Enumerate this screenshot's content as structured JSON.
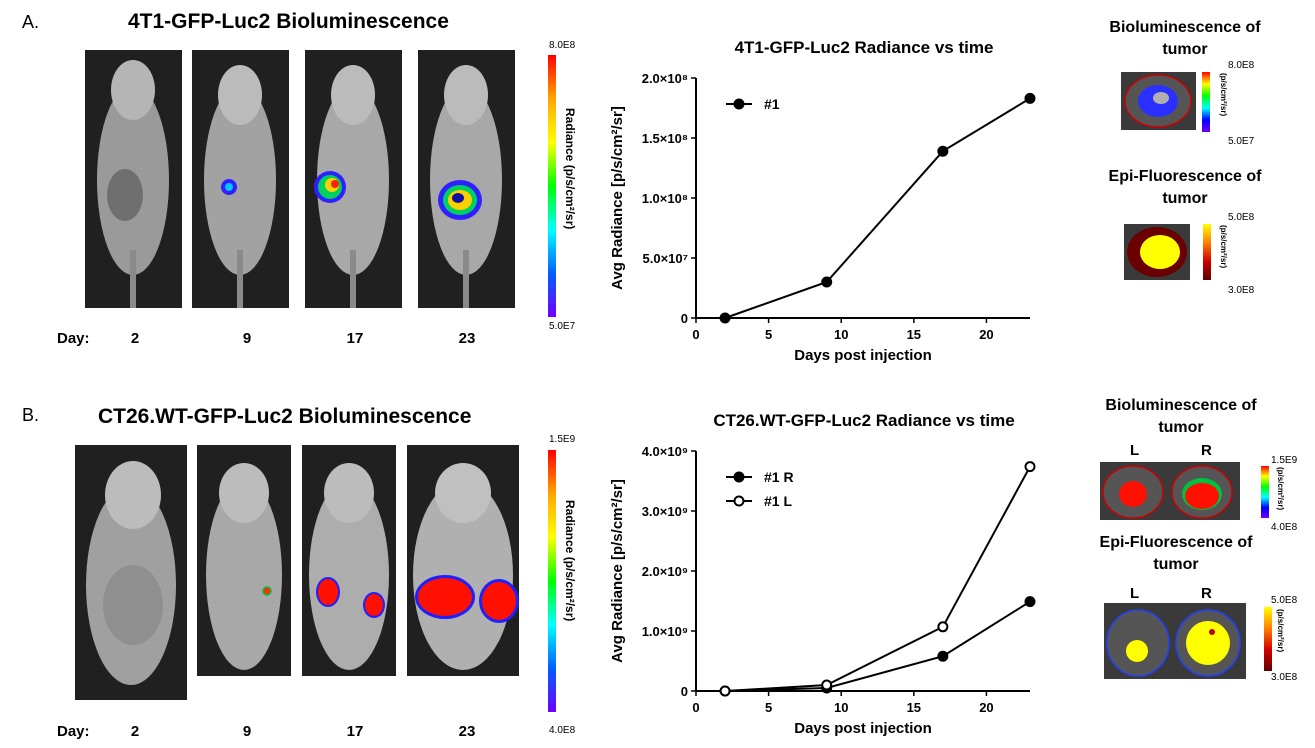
{
  "panels": [
    {
      "letter": "A.",
      "image_title": "4T1-GFP-Luc2 Bioluminescence",
      "day_prefix": "Day:",
      "days": [
        "2",
        "9",
        "17",
        "23"
      ],
      "scale": {
        "max": "8.0E8",
        "min": "5.0E7",
        "label": "Radiance (p/s/cm²/sr)"
      },
      "side": {
        "bio_title": "Bioluminescence of tumor",
        "bio_scale": {
          "max": "8.0E8",
          "min": "5.0E7",
          "label": "(p/s/cm²/sr)"
        },
        "epi_title": "Epi-Fluorescence of tumor",
        "epi_scale": {
          "max": "5.0E8",
          "min": "3.0E8",
          "label": "(p/s/cm²/sr)"
        }
      }
    },
    {
      "letter": "B.",
      "image_title": "CT26.WT-GFP-Luc2 Bioluminescence",
      "day_prefix": "Day:",
      "days": [
        "2",
        "9",
        "17",
        "23"
      ],
      "scale": {
        "max": "1.5E9",
        "min": "4.0E8",
        "label": "Radiance (p/s/cm²/sr)"
      },
      "side": {
        "bio_title": "Bioluminescence of tumor",
        "bio_scale": {
          "max": "1.5E9",
          "min": "4.0E8",
          "label": "(p/s/cm²/sr)"
        },
        "epi_title": "Epi-Fluorescence of tumor",
        "epi_scale": {
          "max": "5.0E8",
          "min": "3.0E8",
          "label": "(p/s/cm²/sr)"
        },
        "left_label": "L",
        "right_label": "R"
      }
    }
  ],
  "colors": {
    "line": "#000000",
    "cold": "#6a00ff",
    "hot": "#ff0000"
  },
  "chart_data": [
    {
      "type": "line",
      "title": "4T1-GFP-Luc2 Radiance vs time",
      "xlabel": "Days post injection",
      "ylabel": "Avg Radiance [p/s/cm²/sr]",
      "xlim": [
        0,
        23
      ],
      "ylim": [
        0,
        200000000
      ],
      "xticks": [
        "0",
        "5",
        "10",
        "15",
        "20"
      ],
      "yticks": [
        "0",
        "5.0×10⁷",
        "1.0×10⁸",
        "1.5×10⁸",
        "2.0×10⁸"
      ],
      "grid": false,
      "legend": "top-left",
      "series": [
        {
          "name": "#1",
          "marker": "filled",
          "x": [
            2,
            9,
            17,
            23
          ],
          "y": [
            0,
            30000000,
            139000000,
            183000000
          ]
        }
      ]
    },
    {
      "type": "line",
      "title": "CT26.WT-GFP-Luc2 Radiance vs time",
      "xlabel": "Days post injection",
      "ylabel": "Avg Radiance [p/s/cm²/sr]",
      "xlim": [
        0,
        23
      ],
      "ylim": [
        0,
        4000000000
      ],
      "xticks": [
        "0",
        "5",
        "10",
        "15",
        "20"
      ],
      "yticks": [
        "0",
        "1.0×10⁹",
        "2.0×10⁹",
        "3.0×10⁹",
        "4.0×10⁹"
      ],
      "grid": false,
      "legend": "top-left",
      "series": [
        {
          "name": "#1 R",
          "marker": "filled",
          "x": [
            2,
            9,
            17,
            23
          ],
          "y": [
            0,
            50000000,
            580000000,
            1490000000
          ]
        },
        {
          "name": "#1 L",
          "marker": "open",
          "x": [
            2,
            9,
            17,
            23
          ],
          "y": [
            0,
            100000000,
            1070000000,
            3740000000
          ]
        }
      ]
    }
  ]
}
